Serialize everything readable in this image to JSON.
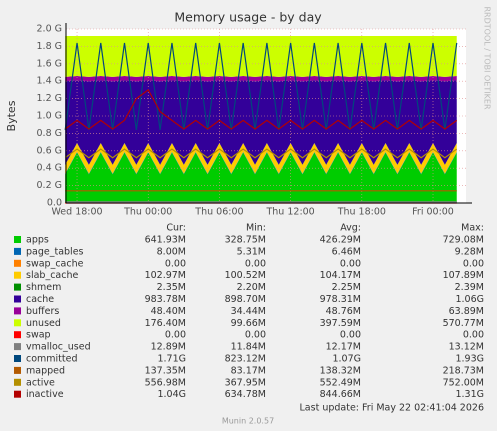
{
  "chart_data": {
    "type": "area",
    "title": "Memory usage - by day",
    "y_label": "Bytes",
    "watermark": "RRDTOOL / TOBI OETIKER",
    "last_update": "Last update: Fri May 22 02:41:04 2026",
    "footer": "Munin 2.0.57",
    "stat_headers": [
      "Cur:",
      "Min:",
      "Avg:",
      "Max:"
    ],
    "grid": true,
    "xlim": [
      17.07,
      50.78
    ],
    "xticks": [
      {
        "value": 18,
        "label": "Wed 18:00"
      },
      {
        "value": 24,
        "label": "Thu 00:00"
      },
      {
        "value": 30,
        "label": "Thu 06:00"
      },
      {
        "value": 36,
        "label": "Thu 12:00"
      },
      {
        "value": 42,
        "label": "Thu 18:00"
      },
      {
        "value": 48,
        "label": "Fri 00:00"
      }
    ],
    "ylim": [
      0,
      2.0
    ],
    "yticks": [
      {
        "value": 0,
        "label": "0.0"
      },
      {
        "value": 0.2,
        "label": "0.2 G"
      },
      {
        "value": 0.4,
        "label": "0.4 G"
      },
      {
        "value": 0.6,
        "label": "0.6 G"
      },
      {
        "value": 0.8,
        "label": "0.8 G"
      },
      {
        "value": 1.0,
        "label": "1.0 G"
      },
      {
        "value": 1.2,
        "label": "1.2 G"
      },
      {
        "value": 1.4,
        "label": "1.4 G"
      },
      {
        "value": 1.6,
        "label": "1.6 G"
      },
      {
        "value": 1.8,
        "label": "1.8 G"
      },
      {
        "value": 2.0,
        "label": "2.0 G"
      }
    ],
    "x": [
      17,
      18,
      19,
      20,
      21,
      22,
      23,
      24,
      25,
      26,
      27,
      28,
      29,
      30,
      31,
      32,
      33,
      34,
      35,
      36,
      37,
      38,
      39,
      40,
      41,
      42,
      43,
      44,
      45,
      46,
      47,
      48,
      49,
      50
    ],
    "series": [
      {
        "name": "apps",
        "color": "#00cc00",
        "draw": "area",
        "stats": [
          "641.93M",
          "328.75M",
          "426.29M",
          "729.08M"
        ],
        "values": [
          0.33,
          0.58,
          0.33,
          0.58,
          0.33,
          0.58,
          0.33,
          0.58,
          0.33,
          0.58,
          0.33,
          0.58,
          0.33,
          0.58,
          0.33,
          0.58,
          0.33,
          0.58,
          0.33,
          0.58,
          0.33,
          0.58,
          0.33,
          0.58,
          0.33,
          0.58,
          0.33,
          0.58,
          0.33,
          0.58,
          0.33,
          0.58,
          0.33,
          0.58
        ]
      },
      {
        "name": "page_tables",
        "color": "#0066b3",
        "draw": "area",
        "stats": [
          "8.00M",
          "5.31M",
          "6.46M",
          "9.28M"
        ],
        "values": [
          0.008,
          0.008,
          0.008,
          0.008,
          0.008,
          0.008,
          0.008,
          0.008,
          0.008,
          0.008,
          0.008,
          0.008,
          0.008,
          0.008,
          0.008,
          0.008,
          0.008,
          0.008,
          0.008,
          0.008,
          0.008,
          0.008,
          0.008,
          0.008,
          0.008,
          0.008,
          0.008,
          0.008,
          0.008,
          0.008,
          0.008,
          0.008,
          0.008,
          0.008
        ]
      },
      {
        "name": "swap_cache",
        "color": "#ff8000",
        "draw": "area",
        "stats": [
          "0.00",
          "0.00",
          "0.00",
          "0.00"
        ],
        "values": [
          0,
          0,
          0,
          0,
          0,
          0,
          0,
          0,
          0,
          0,
          0,
          0,
          0,
          0,
          0,
          0,
          0,
          0,
          0,
          0,
          0,
          0,
          0,
          0,
          0,
          0,
          0,
          0,
          0,
          0,
          0,
          0,
          0,
          0
        ]
      },
      {
        "name": "slab_cache",
        "color": "#ffcc00",
        "draw": "area",
        "stats": [
          "102.97M",
          "100.52M",
          "104.17M",
          "107.89M"
        ],
        "values": [
          0.1,
          0.1,
          0.1,
          0.1,
          0.1,
          0.1,
          0.1,
          0.1,
          0.1,
          0.1,
          0.1,
          0.1,
          0.1,
          0.1,
          0.1,
          0.1,
          0.1,
          0.1,
          0.1,
          0.1,
          0.1,
          0.1,
          0.1,
          0.1,
          0.1,
          0.1,
          0.1,
          0.1,
          0.1,
          0.1,
          0.1,
          0.1,
          0.1,
          0.1
        ]
      },
      {
        "name": "shmem",
        "color": "#008f00",
        "draw": "area",
        "stats": [
          "2.35M",
          "2.20M",
          "2.25M",
          "2.39M"
        ],
        "values": [
          0.002,
          0.002,
          0.002,
          0.002,
          0.002,
          0.002,
          0.002,
          0.002,
          0.002,
          0.002,
          0.002,
          0.002,
          0.002,
          0.002,
          0.002,
          0.002,
          0.002,
          0.002,
          0.002,
          0.002,
          0.002,
          0.002,
          0.002,
          0.002,
          0.002,
          0.002,
          0.002,
          0.002,
          0.002,
          0.002,
          0.002,
          0.002,
          0.002,
          0.002
        ]
      },
      {
        "name": "cache",
        "color": "#330099",
        "draw": "area",
        "stats": [
          "983.78M",
          "898.70M",
          "978.31M",
          "1.06G"
        ],
        "values": [
          0.96,
          0.72,
          0.96,
          0.72,
          0.96,
          0.72,
          0.96,
          0.72,
          0.96,
          0.72,
          0.96,
          0.72,
          0.96,
          0.72,
          0.96,
          0.72,
          0.96,
          0.72,
          0.96,
          0.72,
          0.96,
          0.72,
          0.96,
          0.72,
          0.96,
          0.72,
          0.96,
          0.72,
          0.96,
          0.72,
          0.96,
          0.72,
          0.96,
          0.72
        ]
      },
      {
        "name": "buffers",
        "color": "#990099",
        "draw": "area",
        "stats": [
          "48.40M",
          "34.44M",
          "48.76M",
          "63.89M"
        ],
        "values": [
          0.05,
          0.05,
          0.05,
          0.05,
          0.05,
          0.05,
          0.05,
          0.05,
          0.05,
          0.05,
          0.05,
          0.05,
          0.05,
          0.05,
          0.05,
          0.05,
          0.05,
          0.05,
          0.05,
          0.05,
          0.05,
          0.05,
          0.05,
          0.05,
          0.05,
          0.05,
          0.05,
          0.05,
          0.05,
          0.05,
          0.05,
          0.05,
          0.05,
          0.05
        ]
      },
      {
        "name": "unused",
        "color": "#ccff00",
        "draw": "area",
        "stats": [
          "176.40M",
          "99.66M",
          "397.59M",
          "570.77M"
        ],
        "values": [
          0.47,
          0.46,
          0.47,
          0.46,
          0.47,
          0.46,
          0.47,
          0.46,
          0.47,
          0.46,
          0.47,
          0.46,
          0.47,
          0.46,
          0.47,
          0.46,
          0.47,
          0.46,
          0.47,
          0.46,
          0.47,
          0.46,
          0.47,
          0.46,
          0.47,
          0.46,
          0.47,
          0.46,
          0.47,
          0.46,
          0.47,
          0.46,
          0.47,
          0.46
        ]
      },
      {
        "name": "swap",
        "color": "#ff0000",
        "draw": "line",
        "stats": [
          "0.00",
          "0.00",
          "0.00",
          "0.00"
        ],
        "values": [
          0,
          0,
          0,
          0,
          0,
          0,
          0,
          0,
          0,
          0,
          0,
          0,
          0,
          0,
          0,
          0,
          0,
          0,
          0,
          0,
          0,
          0,
          0,
          0,
          0,
          0,
          0,
          0,
          0,
          0,
          0,
          0,
          0,
          0
        ]
      },
      {
        "name": "vmalloc_used",
        "color": "#808080",
        "draw": "line",
        "stats": [
          "12.89M",
          "11.84M",
          "12.17M",
          "13.12M"
        ],
        "values": [
          0.013,
          0.013,
          0.013,
          0.013,
          0.013,
          0.013,
          0.013,
          0.013,
          0.013,
          0.013,
          0.013,
          0.013,
          0.013,
          0.013,
          0.013,
          0.013,
          0.013,
          0.013,
          0.013,
          0.013,
          0.013,
          0.013,
          0.013,
          0.013,
          0.013,
          0.013,
          0.013,
          0.013,
          0.013,
          0.013,
          0.013,
          0.013,
          0.013,
          0.013
        ]
      },
      {
        "name": "committed",
        "color": "#00487d",
        "draw": "line",
        "stats": [
          "1.71G",
          "823.12M",
          "1.07G",
          "1.93G"
        ],
        "values": [
          0.84,
          1.84,
          0.84,
          1.84,
          0.84,
          1.84,
          0.84,
          1.84,
          0.84,
          1.84,
          0.84,
          1.84,
          0.84,
          1.84,
          0.84,
          1.84,
          0.84,
          1.84,
          0.84,
          1.84,
          0.84,
          1.84,
          0.84,
          1.84,
          0.84,
          1.84,
          0.84,
          1.84,
          0.84,
          1.84,
          0.84,
          1.84,
          0.84,
          1.84
        ]
      },
      {
        "name": "mapped",
        "color": "#b35a00",
        "draw": "line",
        "stats": [
          "137.35M",
          "83.17M",
          "138.32M",
          "218.73M"
        ],
        "values": [
          0.14,
          0.14,
          0.14,
          0.14,
          0.14,
          0.14,
          0.14,
          0.14,
          0.14,
          0.14,
          0.14,
          0.14,
          0.14,
          0.14,
          0.14,
          0.14,
          0.14,
          0.14,
          0.14,
          0.14,
          0.14,
          0.14,
          0.14,
          0.14,
          0.14,
          0.14,
          0.14,
          0.14,
          0.14,
          0.14,
          0.14,
          0.14,
          0.14,
          0.14
        ]
      },
      {
        "name": "active",
        "color": "#b38f00",
        "draw": "line",
        "stats": [
          "556.98M",
          "367.95M",
          "552.49M",
          "752.00M"
        ],
        "values": [
          0.52,
          0.62,
          0.52,
          0.62,
          0.52,
          0.62,
          0.52,
          0.62,
          0.52,
          0.62,
          0.52,
          0.62,
          0.52,
          0.62,
          0.52,
          0.62,
          0.52,
          0.62,
          0.52,
          0.62,
          0.52,
          0.62,
          0.52,
          0.62,
          0.52,
          0.62,
          0.52,
          0.62,
          0.52,
          0.62,
          0.52,
          0.62,
          0.52,
          0.62
        ]
      },
      {
        "name": "inactive",
        "color": "#b30000",
        "draw": "line",
        "stats": [
          "1.04G",
          "634.78M",
          "844.66M",
          "1.31G"
        ],
        "values": [
          0.85,
          0.95,
          0.85,
          0.95,
          0.85,
          0.95,
          1.2,
          1.3,
          1.05,
          0.95,
          0.85,
          0.95,
          0.85,
          0.95,
          0.85,
          0.95,
          0.85,
          0.95,
          0.85,
          0.95,
          0.85,
          0.95,
          0.85,
          0.95,
          0.85,
          0.95,
          0.85,
          0.95,
          0.85,
          0.95,
          0.85,
          0.95,
          0.85,
          0.95
        ]
      }
    ]
  }
}
